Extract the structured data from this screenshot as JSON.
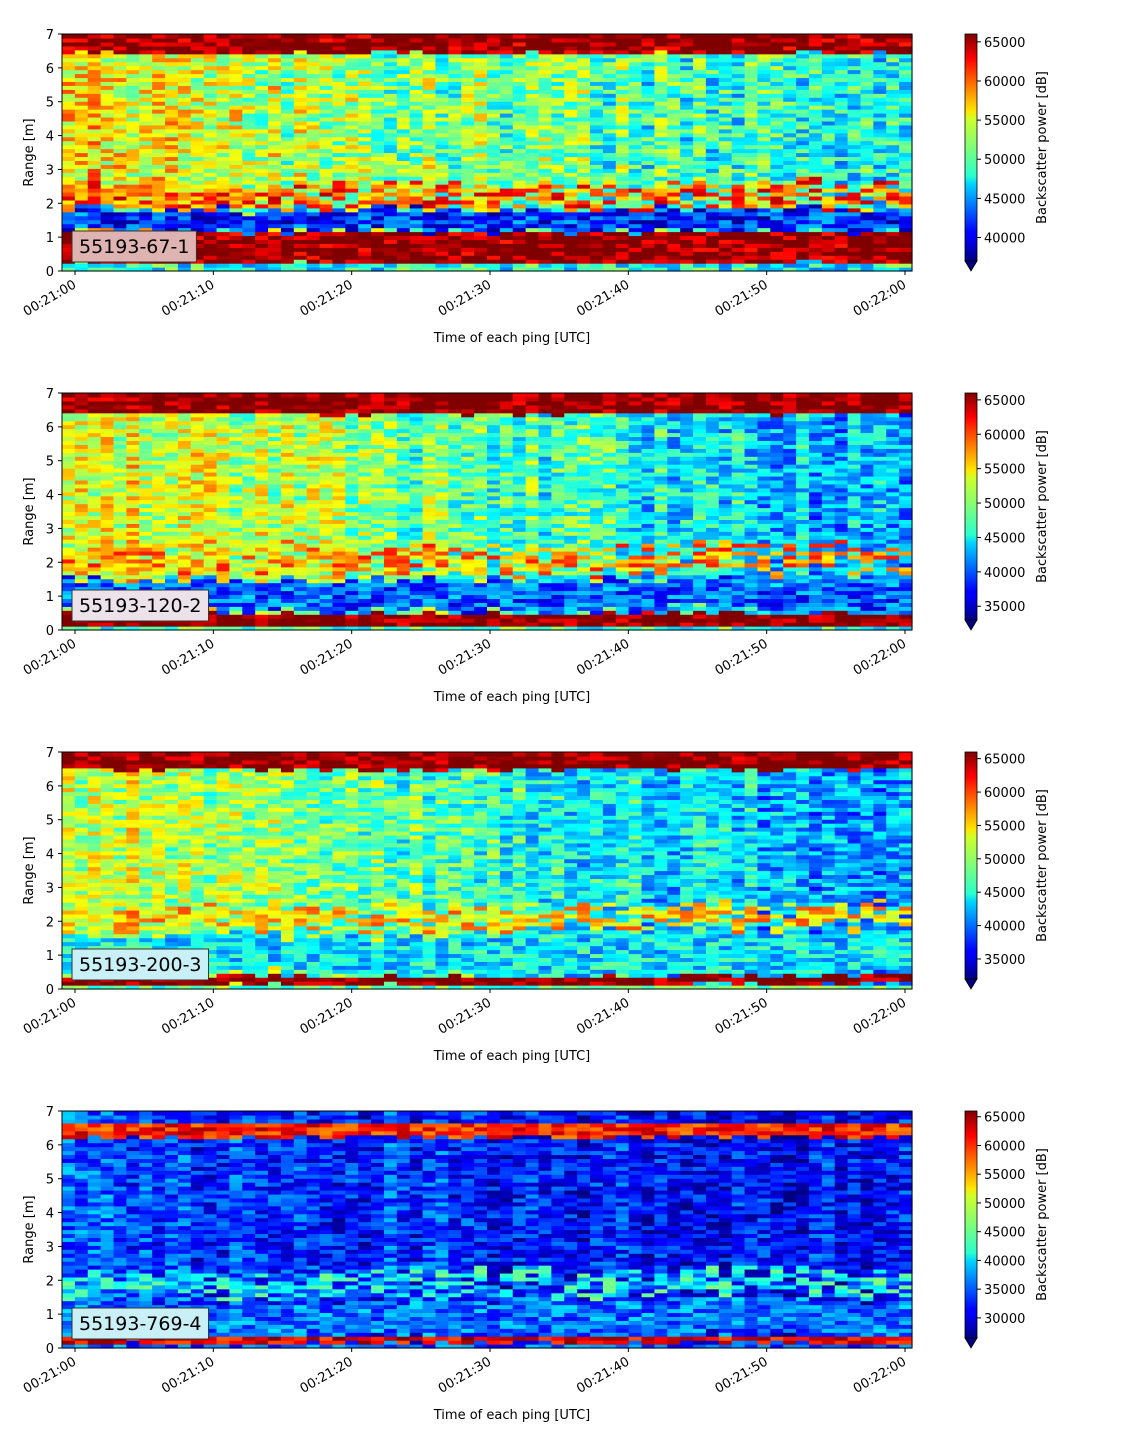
{
  "figure": {
    "x_tick_labels": [
      "00:21:00",
      "00:21:10",
      "00:21:20",
      "00:21:30",
      "00:21:40",
      "00:21:50",
      "00:22:00"
    ],
    "y_tick_labels": [
      "0",
      "1",
      "2",
      "3",
      "4",
      "5",
      "6",
      "7"
    ],
    "xlabel": "Time of each ping [UTC]",
    "ylabel": "Range [m]",
    "colorbar_label": "Backscatter power [dB]",
    "colormap": "jet"
  },
  "chart_data": [
    {
      "type": "heatmap",
      "label": "55193-67-1",
      "label_box_color": "#e0b3b3",
      "x_range": [
        "00:21:00",
        "00:22:00"
      ],
      "ylim": [
        0,
        7
      ],
      "colorbar": {
        "min": 37000,
        "max": 66000,
        "ticks": [
          40000,
          45000,
          50000,
          55000,
          60000,
          65000
        ]
      },
      "pattern": {
        "strong_bands": [
          [
            0.25,
            1.15,
            66000
          ],
          [
            6.45,
            7.0,
            66000
          ]
        ],
        "low_band": [
          1.2,
          1.85,
          42000
        ],
        "body_start": 55000,
        "body_end": 48000,
        "echo_band": [
          1.9,
          2.6,
          60000
        ]
      }
    },
    {
      "type": "heatmap",
      "label": "55193-120-2",
      "label_box_color": "#ece3ea",
      "x_range": [
        "00:21:00",
        "00:22:00"
      ],
      "ylim": [
        0,
        7
      ],
      "colorbar": {
        "min": 33000,
        "max": 66000,
        "ticks": [
          35000,
          40000,
          45000,
          50000,
          55000,
          60000,
          65000
        ]
      },
      "pattern": {
        "strong_bands": [
          [
            0.1,
            0.5,
            66000
          ],
          [
            6.4,
            7.0,
            66000
          ]
        ],
        "low_band": [
          0.6,
          1.5,
          40000
        ],
        "body_start": 54000,
        "body_end": 42000,
        "echo_band": [
          1.7,
          2.5,
          57000
        ]
      }
    },
    {
      "type": "heatmap",
      "label": "55193-200-3",
      "label_box_color": "#c8f0f6",
      "x_range": [
        "00:21:00",
        "00:22:00"
      ],
      "ylim": [
        0,
        7
      ],
      "colorbar": {
        "min": 32000,
        "max": 66000,
        "ticks": [
          35000,
          40000,
          45000,
          50000,
          55000,
          60000,
          65000
        ]
      },
      "pattern": {
        "strong_bands": [
          [
            0.15,
            0.4,
            66000
          ],
          [
            6.5,
            7.0,
            66000
          ]
        ],
        "low_band": [
          0.5,
          1.6,
          44000
        ],
        "body_start": 52000,
        "body_end": 41000,
        "echo_band": [
          1.8,
          2.5,
          55000
        ]
      }
    },
    {
      "type": "heatmap",
      "label": "55193-769-4",
      "label_box_color": "#c8f0f6",
      "x_range": [
        "00:21:00",
        "00:22:00"
      ],
      "ylim": [
        0,
        7
      ],
      "colorbar": {
        "min": 26500,
        "max": 66000,
        "ticks": [
          30000,
          35000,
          40000,
          45000,
          50000,
          55000,
          60000,
          65000
        ]
      },
      "pattern": {
        "strong_bands": [
          [
            0.15,
            0.35,
            62000
          ],
          [
            6.25,
            6.65,
            60000
          ]
        ],
        "low_band": [
          0.4,
          1.4,
          36000
        ],
        "body_start": 34000,
        "body_end": 31000,
        "echo_band": [
          1.6,
          2.3,
          42000
        ]
      }
    }
  ]
}
